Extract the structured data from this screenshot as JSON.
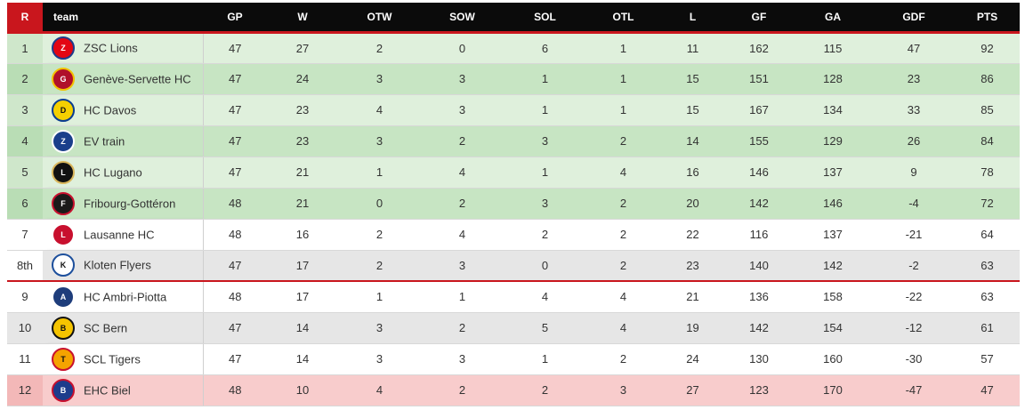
{
  "table": {
    "headers": {
      "rank": "R",
      "team": "team",
      "gp": "GP",
      "w": "W",
      "otw": "OTW",
      "sow": "SOW",
      "sol": "SOL",
      "otl": "OTL",
      "l": "L",
      "gf": "GF",
      "ga": "GA",
      "gdf": "GDF",
      "pts": "PTS"
    },
    "colors": {
      "header_bg": "#0b0b0b",
      "accent_red": "#c9161d",
      "playoff_green": "#dff0dc",
      "playoff_green_alt": "#c7e5c3",
      "relegation_red": "#f8cccc",
      "grey_alt": "#e6e6e6"
    },
    "rows": [
      {
        "rank": "1",
        "team": "ZSC Lions",
        "logo": "zsc-lions-logo",
        "gp": "47",
        "w": "27",
        "otw": "2",
        "sow": "0",
        "sol": "6",
        "otl": "1",
        "l": "11",
        "gf": "162",
        "ga": "115",
        "gdf": "47",
        "pts": "92"
      },
      {
        "rank": "2",
        "team": "Genève-Servette HC",
        "logo": "geneve-servette-logo",
        "gp": "47",
        "w": "24",
        "otw": "3",
        "sow": "3",
        "sol": "1",
        "otl": "1",
        "l": "15",
        "gf": "151",
        "ga": "128",
        "gdf": "23",
        "pts": "86"
      },
      {
        "rank": "3",
        "team": "HC Davos",
        "logo": "hc-davos-logo",
        "gp": "47",
        "w": "23",
        "otw": "4",
        "sow": "3",
        "sol": "1",
        "otl": "1",
        "l": "15",
        "gf": "167",
        "ga": "134",
        "gdf": "33",
        "pts": "85"
      },
      {
        "rank": "4",
        "team": "EV train",
        "logo": "ev-zug-logo",
        "gp": "47",
        "w": "23",
        "otw": "3",
        "sow": "2",
        "sol": "3",
        "otl": "2",
        "l": "14",
        "gf": "155",
        "ga": "129",
        "gdf": "26",
        "pts": "84"
      },
      {
        "rank": "5",
        "team": "HC Lugano",
        "logo": "hc-lugano-logo",
        "gp": "47",
        "w": "21",
        "otw": "1",
        "sow": "4",
        "sol": "1",
        "otl": "4",
        "l": "16",
        "gf": "146",
        "ga": "137",
        "gdf": "9",
        "pts": "78"
      },
      {
        "rank": "6",
        "team": "Fribourg-Gottéron",
        "logo": "fribourg-gotteron-logo",
        "gp": "48",
        "w": "21",
        "otw": "0",
        "sow": "2",
        "sol": "3",
        "otl": "2",
        "l": "20",
        "gf": "142",
        "ga": "146",
        "gdf": "-4",
        "pts": "72"
      },
      {
        "rank": "7",
        "team": "Lausanne HC",
        "logo": "lausanne-hc-logo",
        "gp": "48",
        "w": "16",
        "otw": "2",
        "sow": "4",
        "sol": "2",
        "otl": "2",
        "l": "22",
        "gf": "116",
        "ga": "137",
        "gdf": "-21",
        "pts": "64"
      },
      {
        "rank": "8th",
        "team": "Kloten Flyers",
        "logo": "kloten-flyers-logo",
        "gp": "47",
        "w": "17",
        "otw": "2",
        "sow": "3",
        "sol": "0",
        "otl": "2",
        "l": "23",
        "gf": "140",
        "ga": "142",
        "gdf": "-2",
        "pts": "63"
      },
      {
        "rank": "9",
        "team": "HC Ambri-Piotta",
        "logo": "hc-ambri-piotta-logo",
        "gp": "48",
        "w": "17",
        "otw": "1",
        "sow": "1",
        "sol": "4",
        "otl": "4",
        "l": "21",
        "gf": "136",
        "ga": "158",
        "gdf": "-22",
        "pts": "63"
      },
      {
        "rank": "10",
        "team": "SC Bern",
        "logo": "sc-bern-logo",
        "gp": "47",
        "w": "14",
        "otw": "3",
        "sow": "2",
        "sol": "5",
        "otl": "4",
        "l": "19",
        "gf": "142",
        "ga": "154",
        "gdf": "-12",
        "pts": "61"
      },
      {
        "rank": "11",
        "team": "SCL Tigers",
        "logo": "scl-tigers-logo",
        "gp": "47",
        "w": "14",
        "otw": "3",
        "sow": "3",
        "sol": "1",
        "otl": "2",
        "l": "24",
        "gf": "130",
        "ga": "160",
        "gdf": "-30",
        "pts": "57"
      },
      {
        "rank": "12",
        "team": "EHC Biel",
        "logo": "ehc-biel-logo",
        "gp": "48",
        "w": "10",
        "otw": "4",
        "sow": "2",
        "sol": "2",
        "otl": "3",
        "l": "27",
        "gf": "123",
        "ga": "170",
        "gdf": "-47",
        "pts": "47"
      }
    ]
  }
}
